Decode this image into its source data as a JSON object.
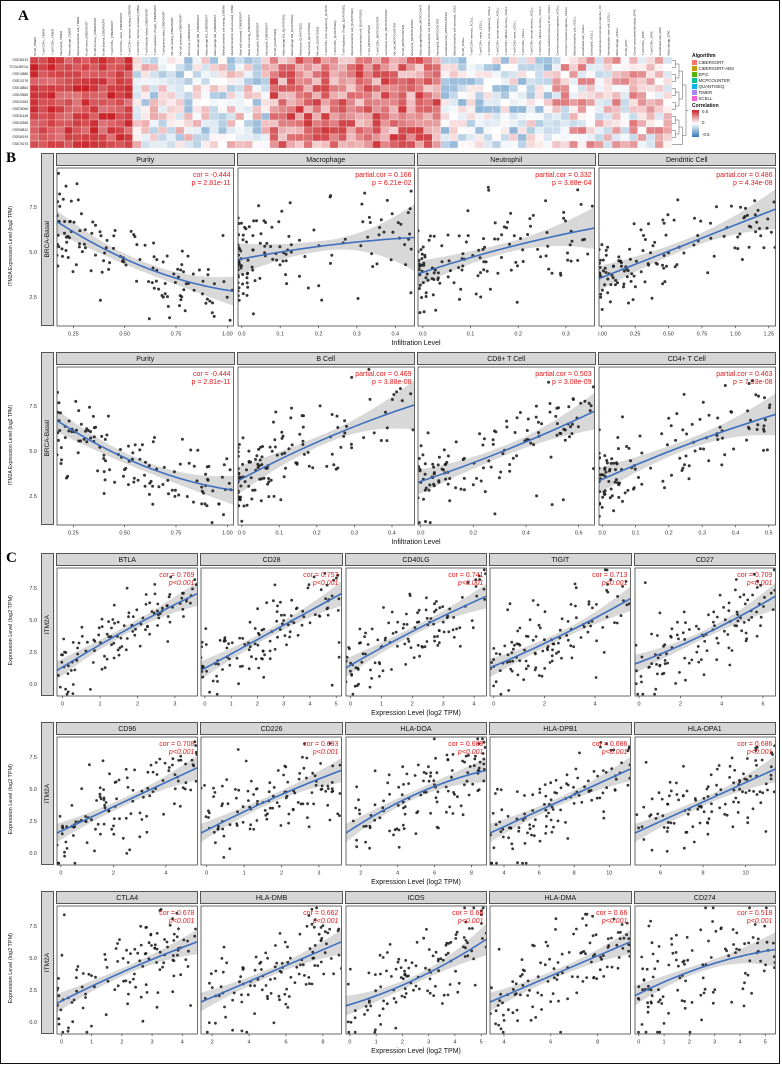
{
  "figure": {
    "panel_a_label": "A",
    "panel_b_label": "B",
    "panel_c_label": "C"
  },
  "chart_data": [
    {
      "id": "A",
      "type": "heatmap",
      "description": "Correlation heatmap of ITM2A expression with immune cell infiltration estimates across datasets",
      "row_labels": [
        "GSE36133",
        "TCGA-BRCA",
        "GSE10886",
        "GSE12276",
        "GSE18864",
        "GSE20685",
        "GSE21653",
        "GSE25066",
        "GSE31448",
        "GSE42568",
        "GSE58812",
        "GSE65194",
        "GSE76275"
      ],
      "col_labels": [
        "B cell_TIMER",
        "T cell CD4+_TIMER",
        "T cell CD8+_TIMER",
        "Neutrophil_TIMER",
        "Macrophage_TIMER",
        "Myeloid dendritic cell_TIMER",
        "B cell naive_CIBERSORT",
        "B cell memory_CIBERSORT",
        "B cell plasma_CIBERSORT",
        "T cell CD8+_CIBERSORT",
        "T cell CD4+ naive_CIBERSORT",
        "T cell CD4+ memory resting_CIBERSORT",
        "T cell CD4+ memory activated_CIBERSORT",
        "T cell follicular helper_CIBERSORT",
        "T cell regulatory (Tregs)_CIBERSORT",
        "T cell gamma delta_CIBERSORT",
        "NK cell resting_CIBERSORT",
        "NK cell activated_CIBERSORT",
        "Monocyte_CIBERSORT",
        "Macrophage M0_CIBERSORT",
        "Macrophage M1_CIBERSORT",
        "Macrophage M2_CIBERSORT",
        "Myeloid dendritic cell resting_CIBERSORT",
        "Myeloid dendritic cell activated_CIBERSORT",
        "Mast cell activated_CIBERSORT",
        "Mast cell resting_CIBERSORT",
        "Eosinophil_CIBERSORT",
        "Neutrophil_CIBERSORT",
        "B cell_QUANTISEQ",
        "Macrophage M1_QUANTISEQ",
        "Macrophage M2_QUANTISEQ",
        "Monocyte_QUANTISEQ",
        "Neutrophil_QUANTISEQ",
        "NK cell_QUANTISEQ",
        "T cell CD4+ (non-regulatory)_QUANTISEQ",
        "T cell CD8+_QUANTISEQ",
        "T cell regulatory (Tregs)_QUANTISEQ",
        "Myeloid dendritic cell_QUANTISEQ",
        "uncharacterized cell_QUANTISEQ",
        "T cell_MCPCOUNTER",
        "T cell CD8+_MCPCOUNTER",
        "cytotoxicity score_MCPCOUNTER",
        "NK cell_MCPCOUNTER",
        "B cell_MCPCOUNTER",
        "Monocyte_MCPCOUNTER",
        "Macrophage/Monocyte_MCPCOUNTER",
        "Myeloid dendritic cell_MCPCOUNTER",
        "Neutrophil_MCPCOUNTER",
        "Endothelial cell_MCPCOUNTER",
        "Myeloid dendritic cell activated_XCELL",
        "B cell_XCELL",
        "T cell CD4+ memory_XCELL",
        "T cell CD4+ naive_XCELL",
        "T cell CD4+ (non-regulatory)_XCELL",
        "T cell CD4+ central memory_XCELL",
        "T cell CD4+ effector memory_XCELL",
        "T cell CD8+ naive_XCELL",
        "T cell CD8+_XCELL",
        "T cell CD8+ central memory_XCELL",
        "T cell CD8+ effector memory_XCELL",
        "Class-switched memory B cell_XCELL",
        "Common lymphoid progenitor_XCELL",
        "Common myeloid progenitor_XCELL",
        "Myeloid dendritic cell_XCELL",
        "Endothelial cell_XCELL",
        "Eosinophil_XCELL",
        "Granulocyte-monocyte progenitor_XCELL",
        "Hematopoietic stem cell_XCELL",
        "Macrophage_XCELL",
        "B cell_EPIC",
        "Cancer associated fibroblast_EPIC",
        "T cell CD4+_EPIC",
        "T cell CD8+_EPIC",
        "Endothelial cell_EPIC",
        "Macrophage_EPIC"
      ],
      "bias_segments": [
        {
          "from": 0,
          "to": 11,
          "bias": 0.8,
          "spread": 0.2
        },
        {
          "from": 12,
          "to": 27,
          "bias": -0.05,
          "spread": 0.45
        },
        {
          "from": 28,
          "to": 47,
          "bias": 0.55,
          "spread": 0.35
        },
        {
          "from": 48,
          "to": 60,
          "bias": -0.15,
          "spread": 0.4
        },
        {
          "from": 61,
          "to": 74,
          "bias": 0.15,
          "spread": 0.45
        }
      ],
      "colors": {
        "positive": "#c81e23",
        "negative": "#3278b4",
        "mid": "#ffffff"
      },
      "legend": {
        "algorithm_title": "Algorithm",
        "algorithms": [
          {
            "label": "CIBERSORT",
            "color": "#F8766D"
          },
          {
            "label": "CIBERSORT-ABS",
            "color": "#C49A00"
          },
          {
            "label": "EPIC",
            "color": "#53B400"
          },
          {
            "label": "MCPCOUNTER",
            "color": "#00C094"
          },
          {
            "label": "QUANTISEQ",
            "color": "#00B6EB"
          },
          {
            "label": "TIMER",
            "color": "#A58AFF"
          },
          {
            "label": "XCELL",
            "color": "#FB61D7"
          }
        ],
        "correlation_title": "Correlation",
        "correlation_ticks": [
          "0.5",
          "0",
          "-0.5"
        ]
      }
    },
    {
      "id": "B",
      "type": "scatter-grid",
      "xlabel": "Infiltration Level",
      "ylabel": "ITM2A Expression Level (log2 TPM)",
      "strip": "BRCA-Basal",
      "yticks": [
        "7.5",
        "5.0",
        "2.5"
      ],
      "yrange": [
        1,
        9.8
      ],
      "point_color": "#1b1b1b",
      "line_color": "#3f6fbf",
      "stat_color": "#e31a1c",
      "rows": [
        [
          {
            "title": "Purity",
            "stat1": "cor = -0.444",
            "stat2": "p = 2.81e-11",
            "xticks": [
              "0.25",
              "0.50",
              "0.75",
              "1.00"
            ],
            "xrange": [
              0.17,
              1.03
            ],
            "line": [
              0.66,
              0.22
            ],
            "bend": -0.07,
            "sd": 0.12,
            "xpow": 1.4,
            "n": 125,
            "hb": 5,
            "he": 1.2,
            "rm": 1.6
          },
          {
            "title": "Macrophage",
            "stat1": "partial.cor = 0.166",
            "stat2": "p = 6.21e-02",
            "xticks": [
              "0.0",
              "0.1",
              "0.2",
              "0.3",
              "0.4"
            ],
            "xrange": [
              -0.01,
              0.45
            ],
            "line": [
              0.42,
              0.56
            ],
            "bend": 0.02,
            "sd": 0.15,
            "xpow": 2.4,
            "n": 125,
            "hb": 5,
            "he": 2.2,
            "rm": 2.6
          },
          {
            "title": "Neutrophil",
            "stat1": "partial.cor = 0.332",
            "stat2": "p = 3.88e-04",
            "xticks": [
              "0.0",
              "0.1",
              "0.2",
              "0.3"
            ],
            "xrange": [
              -0.01,
              0.36
            ],
            "line": [
              0.33,
              0.62
            ],
            "bend": 0.02,
            "sd": 0.14,
            "xpow": 1.8,
            "n": 125,
            "hb": 5,
            "he": 1.6,
            "rm": 2.0
          },
          {
            "title": "Dendritic Cell",
            "stat1": "partial.cor = 0.486",
            "stat2": "p = 4.34e-08",
            "xticks": [
              "0.00",
              "0.25",
              "0.50",
              "0.75",
              "1.00",
              "1.25"
            ],
            "xrange": [
              -0.02,
              1.3
            ],
            "line": [
              0.3,
              0.74
            ],
            "bend": 0.0,
            "sd": 0.12,
            "xpow": 1.6,
            "n": 125,
            "hb": 5,
            "he": 1.5,
            "rm": 2.0
          }
        ],
        [
          {
            "title": "Purity",
            "stat1": "cor = -0.444",
            "stat2": "p = 2.81e-11",
            "xticks": [
              "0.25",
              "0.50",
              "0.75",
              "1.00"
            ],
            "xrange": [
              0.17,
              1.03
            ],
            "line": [
              0.66,
              0.22
            ],
            "bend": -0.07,
            "sd": 0.12,
            "xpow": 1.4,
            "n": 125,
            "hb": 5,
            "he": 1.2,
            "rm": 1.6
          },
          {
            "title": "B Cell",
            "stat1": "partial.cor = 0.469",
            "stat2": "p = 3.88e-08",
            "xticks": [
              "0.0",
              "0.1",
              "0.2",
              "0.3",
              "0.4"
            ],
            "xrange": [
              -0.01,
              0.46
            ],
            "line": [
              0.28,
              0.76
            ],
            "bend": 0.03,
            "sd": 0.12,
            "xpow": 2.0,
            "n": 125,
            "hb": 5,
            "he": 1.8,
            "rm": 2.2
          },
          {
            "title": "CD8+ T Cell",
            "stat1": "partial.cor = 0.503",
            "stat2": "p = 3.08e-09",
            "xticks": [
              "0.0",
              "0.2",
              "0.4",
              "0.6"
            ],
            "xrange": [
              -0.01,
              0.66
            ],
            "line": [
              0.27,
              0.72
            ],
            "bend": -0.02,
            "sd": 0.12,
            "xpow": 1.7,
            "n": 125,
            "hb": 5,
            "he": 1.5,
            "rm": 1.8
          },
          {
            "title": "CD4+ T Cell",
            "stat1": "partial.cor = 0.463",
            "stat2": "p = 7.93e-08",
            "xticks": [
              "0.0",
              "0.1",
              "0.2",
              "0.3",
              "0.4",
              "0.5"
            ],
            "xrange": [
              -0.01,
              0.52
            ],
            "line": [
              0.28,
              0.7
            ],
            "bend": 0.02,
            "sd": 0.12,
            "xpow": 1.8,
            "n": 125,
            "hb": 5,
            "he": 1.6,
            "rm": 2.0
          }
        ]
      ]
    },
    {
      "id": "C",
      "type": "scatter-grid",
      "xlabel": "Expression Level (log2 TPM)",
      "ylabel": "Expression Level (log2 TPM)",
      "strip": "ITM2A",
      "yticks": [
        "7.5",
        "5.0",
        "2.5",
        "0.0"
      ],
      "yrange": [
        -0.8,
        9.2
      ],
      "point_color": "#1b1b1b",
      "line_color": "#3f6fbf",
      "stat_color": "#e31a1c",
      "rows": [
        [
          {
            "title": "BTLA",
            "stat1": "cor = 0.769",
            "stat2": "p<0.001",
            "xticks": [
              "0",
              "1",
              "2",
              "3"
            ],
            "xrange": [
              -0.15,
              3.6
            ],
            "line": [
              0.2,
              0.8
            ],
            "bend": 0.02,
            "sd": 0.13,
            "xpow": 1.1,
            "n": 115,
            "hb": 4,
            "he": 1.3,
            "rm": 1.6
          },
          {
            "title": "CD28",
            "stat1": "cor = 0.757",
            "stat2": "p<0.001",
            "xticks": [
              "0",
              "1",
              "2",
              "3",
              "4",
              "5"
            ],
            "xrange": [
              -0.15,
              5.2
            ],
            "line": [
              0.2,
              0.8
            ],
            "bend": 0.0,
            "sd": 0.13,
            "xpow": 1.1,
            "n": 115,
            "hb": 4,
            "he": 1.3,
            "rm": 1.6
          },
          {
            "title": "CD40LG",
            "stat1": "cor = 0.741",
            "stat2": "p<0.001",
            "xticks": [
              "0",
              "1",
              "2",
              "3",
              "4"
            ],
            "xrange": [
              -0.15,
              4.4
            ],
            "line": [
              0.22,
              0.78
            ],
            "bend": 0.02,
            "sd": 0.14,
            "xpow": 1.1,
            "n": 115,
            "hb": 4,
            "he": 1.3,
            "rm": 1.6
          },
          {
            "title": "TIGIT",
            "stat1": "cor = 0.713",
            "stat2": "p<0.001",
            "xticks": [
              "0",
              "2",
              "4"
            ],
            "xrange": [
              -0.15,
              5.4
            ],
            "line": [
              0.22,
              0.76
            ],
            "bend": -0.02,
            "sd": 0.15,
            "xpow": 1.0,
            "n": 115,
            "hb": 4,
            "he": 1.3,
            "rm": 1.6
          },
          {
            "title": "CD27",
            "stat1": "cor = 0.709",
            "stat2": "p<0.001",
            "xticks": [
              "0",
              "2",
              "4",
              "6"
            ],
            "xrange": [
              -0.2,
              6.6
            ],
            "line": [
              0.25,
              0.78
            ],
            "bend": -0.03,
            "sd": 0.15,
            "xpow": 1.0,
            "n": 115,
            "hb": 4,
            "he": 1.3,
            "rm": 1.8
          }
        ],
        [
          {
            "title": "CD96",
            "stat1": "cor = 0.708",
            "stat2": "p<0.001",
            "xticks": [
              "0",
              "2",
              "4"
            ],
            "xrange": [
              -0.15,
              5.2
            ],
            "line": [
              0.25,
              0.76
            ],
            "bend": 0.0,
            "sd": 0.15,
            "xpow": 1.0,
            "n": 115,
            "hb": 4,
            "he": 1.3,
            "rm": 1.6
          },
          {
            "title": "CD226",
            "stat1": "cor = 0.693",
            "stat2": "p<0.001",
            "xticks": [
              "0",
              "1",
              "2",
              "3"
            ],
            "xrange": [
              -0.15,
              3.6
            ],
            "line": [
              0.25,
              0.74
            ],
            "bend": 0.02,
            "sd": 0.16,
            "xpow": 1.0,
            "n": 115,
            "hb": 4,
            "he": 1.3,
            "rm": 1.6
          },
          {
            "title": "HLA-DOA",
            "stat1": "cor = 0.689",
            "stat2": "p<0.001",
            "xticks": [
              "2",
              "4",
              "6",
              "8"
            ],
            "xrange": [
              1.2,
              8.8
            ],
            "line": [
              0.25,
              0.74
            ],
            "bend": 0.06,
            "sd": 0.16,
            "xpow": 0.9,
            "n": 115,
            "hb": 4,
            "he": 1.3,
            "rm": 1.6
          },
          {
            "title": "HLA-DPB1",
            "stat1": "cor = 0.686",
            "stat2": "p<0.001",
            "xticks": [
              "4",
              "6",
              "8",
              "10"
            ],
            "xrange": [
              3.2,
              11.2
            ],
            "line": [
              0.25,
              0.75
            ],
            "bend": 0.0,
            "sd": 0.16,
            "xpow": 0.9,
            "n": 115,
            "hb": 4,
            "he": 1.3,
            "rm": 1.6
          },
          {
            "title": "HLA-DPA1",
            "stat1": "cor = 0.686",
            "stat2": "p<0.001",
            "xticks": [
              "6",
              "8",
              "10"
            ],
            "xrange": [
              4.8,
              11.4
            ],
            "line": [
              0.25,
              0.75
            ],
            "bend": 0.0,
            "sd": 0.16,
            "xpow": 0.9,
            "n": 115,
            "hb": 4,
            "he": 1.3,
            "rm": 1.8
          }
        ],
        [
          {
            "title": "CTLA4",
            "stat1": "cor = 0.678",
            "stat2": "p<0.001",
            "xticks": [
              "0",
              "1",
              "2",
              "3",
              "4"
            ],
            "xrange": [
              -0.15,
              4.5
            ],
            "line": [
              0.24,
              0.72
            ],
            "bend": 0.02,
            "sd": 0.16,
            "xpow": 1.1,
            "n": 115,
            "hb": 4,
            "he": 1.3,
            "rm": 1.6
          },
          {
            "title": "HLA-DMB",
            "stat1": "cor = 0.662",
            "stat2": "p<0.001",
            "xticks": [
              "2",
              "4",
              "6",
              "8"
            ],
            "xrange": [
              1.4,
              9.0
            ],
            "line": [
              0.25,
              0.72
            ],
            "bend": 0.0,
            "sd": 0.17,
            "xpow": 0.9,
            "n": 115,
            "hb": 4,
            "he": 1.3,
            "rm": 1.6
          },
          {
            "title": "ICOS",
            "stat1": "cor = 0.66",
            "stat2": "p<0.001",
            "xticks": [
              "0",
              "1",
              "2",
              "3",
              "4",
              "5"
            ],
            "xrange": [
              -0.15,
              5.2
            ],
            "line": [
              0.22,
              0.74
            ],
            "bend": -0.05,
            "sd": 0.17,
            "xpow": 1.0,
            "n": 115,
            "hb": 4,
            "he": 1.5,
            "rm": 2.0
          },
          {
            "title": "HLA-DMA",
            "stat1": "cor = 0.66",
            "stat2": "p<0.001",
            "xticks": [
              "4",
              "6",
              "8"
            ],
            "xrange": [
              3.4,
              9.4
            ],
            "line": [
              0.25,
              0.72
            ],
            "bend": 0.0,
            "sd": 0.17,
            "xpow": 0.9,
            "n": 115,
            "hb": 4,
            "he": 1.3,
            "rm": 1.6
          },
          {
            "title": "CD274",
            "stat1": "cor = 0.518",
            "stat2": "p<0.001",
            "xticks": [
              "0",
              "1",
              "2",
              "3",
              "4",
              "5"
            ],
            "xrange": [
              -0.15,
              5.4
            ],
            "line": [
              0.3,
              0.66
            ],
            "bend": 0.05,
            "sd": 0.21,
            "xpow": 1.0,
            "n": 115,
            "hb": 4,
            "he": 1.5,
            "rm": 2.2
          }
        ]
      ]
    }
  ]
}
